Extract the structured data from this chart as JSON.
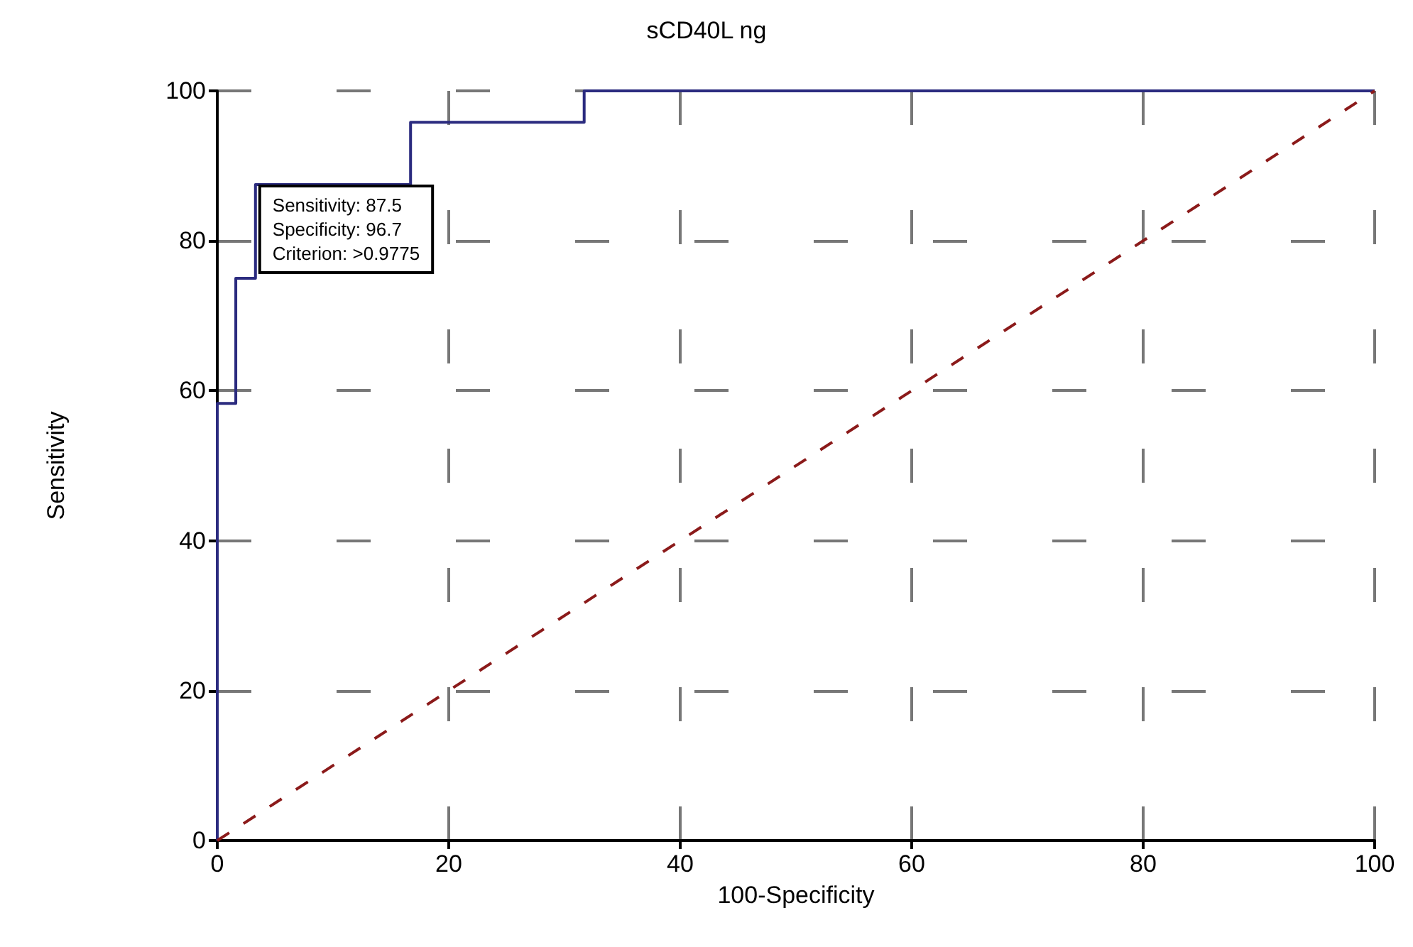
{
  "chart_data": {
    "type": "step",
    "title": "sCD40L ng",
    "xlabel": "100-Specificity",
    "ylabel": "Sensitivity",
    "series": [
      {
        "color": "#2b2b7f",
        "x": [
          0,
          0,
          1.6,
          3.3,
          16.7,
          31.7,
          100
        ],
        "values": [
          0,
          58.3,
          75,
          87.5,
          95.8,
          100,
          100
        ]
      },
      {
        "type": "line",
        "color": "#8b1a1a",
        "line_style": "dashed",
        "x": [
          0,
          100
        ],
        "values": [
          0,
          100
        ]
      }
    ],
    "xlim": [
      0,
      100
    ],
    "xticks": [
      0,
      20,
      40,
      60,
      80,
      100
    ],
    "ylim": [
      0,
      100
    ],
    "yticks": [
      0,
      20,
      40,
      60,
      80,
      100
    ],
    "grid": true,
    "marker": "none",
    "annotations": [
      {
        "text": "Sensitivity: 87.5\nSpecificity: 96.7\nCriterion: >0.9775",
        "x": 3.3,
        "y": 87.5
      }
    ]
  }
}
